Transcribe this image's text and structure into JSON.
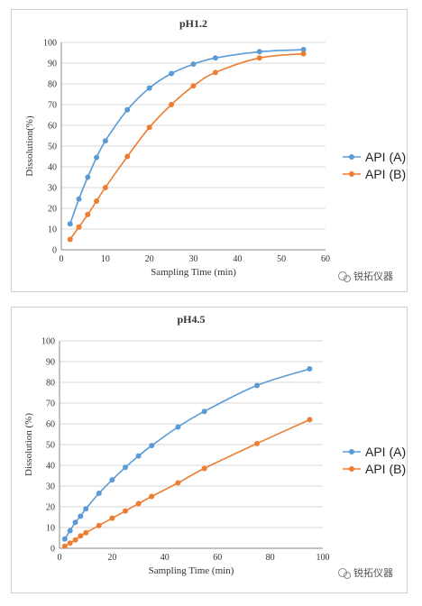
{
  "colors": {
    "api_a": "#5b9bd5",
    "api_b": "#ed7d31",
    "grid": "#d9d9d9",
    "axis": "#888888"
  },
  "watermark": "锐拓仪器",
  "chart_data": [
    {
      "type": "line",
      "title": "pH1.2",
      "xlabel": "Sampling Time (min)",
      "ylabel": "Dissolution(%)",
      "xlim": [
        0,
        60
      ],
      "ylim": [
        0,
        100
      ],
      "xticks": [
        0,
        10,
        20,
        30,
        40,
        50,
        60
      ],
      "yticks": [
        0,
        10,
        20,
        30,
        40,
        50,
        60,
        70,
        80,
        90,
        100
      ],
      "grid": "horizontal",
      "legend_position": "right",
      "series": [
        {
          "name": "API (A)",
          "color": "#5b9bd5",
          "x": [
            2,
            4,
            6,
            8,
            10,
            15,
            20,
            25,
            30,
            35,
            45,
            55
          ],
          "y": [
            12.5,
            24.5,
            35,
            44.5,
            52.5,
            67.5,
            78,
            85,
            89.5,
            92.5,
            95.5,
            96.5
          ]
        },
        {
          "name": "API (B)",
          "color": "#ed7d31",
          "x": [
            2,
            4,
            6,
            8,
            10,
            15,
            20,
            25,
            30,
            35,
            45,
            55
          ],
          "y": [
            5,
            11,
            17,
            23.5,
            30,
            45,
            59,
            70,
            79,
            85.5,
            92.5,
            94.5
          ]
        }
      ]
    },
    {
      "type": "line",
      "title": "pH4.5",
      "xlabel": "Sampling Time (min)",
      "ylabel": "Dissolution (%)",
      "xlim": [
        0,
        100
      ],
      "ylim": [
        0,
        100
      ],
      "xticks": [
        0,
        20,
        40,
        60,
        80,
        100
      ],
      "yticks": [
        0,
        10,
        20,
        30,
        40,
        50,
        60,
        70,
        80,
        90,
        100
      ],
      "grid": "horizontal",
      "legend_position": "right",
      "series": [
        {
          "name": "API (A)",
          "color": "#5b9bd5",
          "x": [
            2,
            4,
            6,
            8,
            10,
            15,
            20,
            25,
            30,
            35,
            45,
            55,
            75,
            95
          ],
          "y": [
            4.5,
            8.5,
            12.5,
            15.5,
            19,
            26.5,
            33,
            39,
            44.5,
            49.5,
            58.5,
            66,
            78.5,
            86.5
          ]
        },
        {
          "name": "API (B)",
          "color": "#ed7d31",
          "x": [
            2,
            4,
            6,
            8,
            10,
            15,
            20,
            25,
            30,
            35,
            45,
            55,
            75,
            95
          ],
          "y": [
            1,
            2.5,
            4,
            6,
            7.5,
            11,
            14.5,
            18,
            21.5,
            25,
            31.5,
            38.5,
            50.5,
            62
          ]
        }
      ]
    }
  ]
}
